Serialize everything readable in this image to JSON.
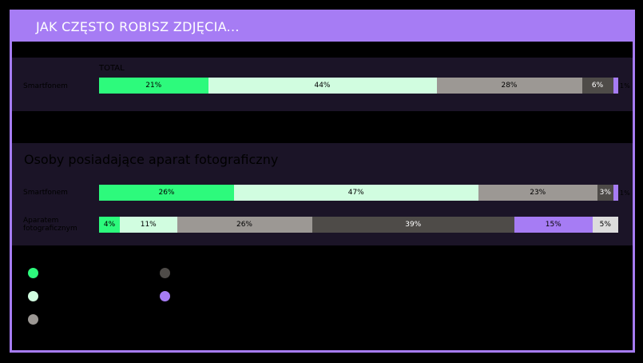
{
  "title": "JAK CZĘSTO ROBISZ ZDJĘCIA...",
  "section_total_label": "TOTAL",
  "section2_title": "Osoby posiadające aparat fotograficzny",
  "colors": [
    "#2dfa7c",
    "#d1fde0",
    "#9c9894",
    "#4e4b48",
    "#a67cf4",
    "#dcdcdc"
  ],
  "chart_data": [
    {
      "type": "bar",
      "title": "TOTAL",
      "categories": [
        "Smartfonem"
      ],
      "stacked": true,
      "orientation": "horizontal",
      "segments": [
        [
          21,
          44,
          28,
          6,
          1
        ]
      ],
      "labels": [
        [
          "21%",
          "44%",
          "28%",
          "6%",
          "1%"
        ]
      ]
    },
    {
      "type": "bar",
      "title": "Osoby posiadające aparat fotograficzny",
      "categories": [
        "Smartfonem",
        "Aparatem fotograficznym"
      ],
      "stacked": true,
      "orientation": "horizontal",
      "segments": [
        [
          26,
          47,
          23,
          3,
          1
        ],
        [
          4,
          11,
          26,
          39,
          15,
          5
        ]
      ],
      "labels": [
        [
          "26%",
          "47%",
          "23%",
          "3%",
          "1%"
        ],
        [
          "4%",
          "11%",
          "26%",
          "39%",
          "15%",
          "5%"
        ]
      ]
    }
  ]
}
